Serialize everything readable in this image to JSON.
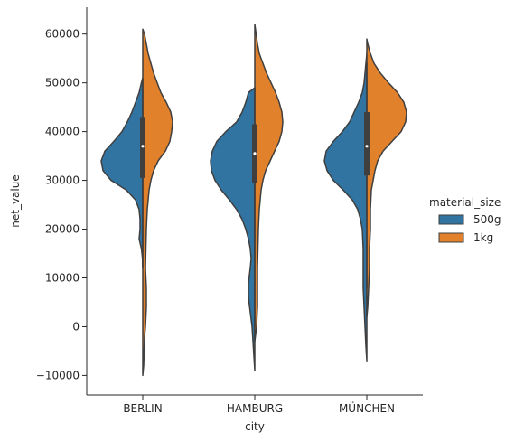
{
  "chart_data": {
    "type": "violin",
    "split": true,
    "xlabel": "city",
    "ylabel": "net_value",
    "ylim": [
      -14000,
      65500
    ],
    "yticks": [
      -10000,
      0,
      10000,
      20000,
      30000,
      40000,
      50000,
      60000
    ],
    "categories": [
      "BERLIN",
      "HAMBURG",
      "MÜNCHEN"
    ],
    "legend": {
      "title": "material_size",
      "position": "right"
    },
    "series": [
      {
        "name": "500g",
        "color": "#3274a1",
        "side": "left"
      },
      {
        "name": "1kg",
        "color": "#e1812c",
        "side": "right"
      }
    ],
    "violins": [
      {
        "category": "BERLIN",
        "box": {
          "q1": 30500,
          "median": 37000,
          "q3": 43000,
          "whisker_low": 12000,
          "whisker_high": 51000
        },
        "left": [
          [
            12000,
            0
          ],
          [
            14000,
            0.3
          ],
          [
            16000,
            1.5
          ],
          [
            18000,
            4
          ],
          [
            20000,
            3
          ],
          [
            22000,
            3
          ],
          [
            24000,
            4
          ],
          [
            26000,
            8
          ],
          [
            28000,
            18
          ],
          [
            30000,
            35
          ],
          [
            32000,
            44
          ],
          [
            34000,
            46
          ],
          [
            36000,
            42
          ],
          [
            38000,
            32
          ],
          [
            40000,
            23
          ],
          [
            42000,
            17
          ],
          [
            44000,
            12
          ],
          [
            46000,
            8
          ],
          [
            48000,
            4
          ],
          [
            50000,
            1.5
          ],
          [
            51000,
            0
          ]
        ],
        "right": [
          [
            -10000,
            0
          ],
          [
            -8000,
            1
          ],
          [
            -5000,
            1.5
          ],
          [
            -2000,
            2
          ],
          [
            0,
            3
          ],
          [
            4000,
            4
          ],
          [
            8000,
            4
          ],
          [
            12000,
            3
          ],
          [
            16000,
            3.5
          ],
          [
            20000,
            4
          ],
          [
            24000,
            5
          ],
          [
            28000,
            7
          ],
          [
            30000,
            9
          ],
          [
            32000,
            12
          ],
          [
            34000,
            17
          ],
          [
            36000,
            25
          ],
          [
            38000,
            30
          ],
          [
            40000,
            32
          ],
          [
            42000,
            33
          ],
          [
            44000,
            31
          ],
          [
            46000,
            26
          ],
          [
            48000,
            20
          ],
          [
            50000,
            16
          ],
          [
            52000,
            12
          ],
          [
            54000,
            9
          ],
          [
            56000,
            6
          ],
          [
            58000,
            4
          ],
          [
            60000,
            2
          ],
          [
            61000,
            0
          ]
        ]
      },
      {
        "category": "HAMBURG",
        "box": {
          "q1": 29500,
          "median": 35500,
          "q3": 41500,
          "whisker_low": 0,
          "whisker_high": 49000
        },
        "left": [
          [
            -9000,
            0
          ],
          [
            -6000,
            1
          ],
          [
            -3000,
            2
          ],
          [
            0,
            3
          ],
          [
            3000,
            5
          ],
          [
            6000,
            7
          ],
          [
            9000,
            7
          ],
          [
            12000,
            5
          ],
          [
            14000,
            4
          ],
          [
            16000,
            5
          ],
          [
            18000,
            7
          ],
          [
            20000,
            10
          ],
          [
            22000,
            14
          ],
          [
            24000,
            20
          ],
          [
            26000,
            28
          ],
          [
            28000,
            37
          ],
          [
            30000,
            44
          ],
          [
            32000,
            48
          ],
          [
            34000,
            49
          ],
          [
            36000,
            47
          ],
          [
            38000,
            42
          ],
          [
            40000,
            32
          ],
          [
            42000,
            20
          ],
          [
            44000,
            14
          ],
          [
            46000,
            10
          ],
          [
            48000,
            7
          ],
          [
            49000,
            0
          ]
        ],
        "right": [
          [
            -3000,
            0
          ],
          [
            0,
            2
          ],
          [
            4000,
            3
          ],
          [
            8000,
            3
          ],
          [
            12000,
            3
          ],
          [
            16000,
            3.5
          ],
          [
            20000,
            4
          ],
          [
            24000,
            5
          ],
          [
            28000,
            7
          ],
          [
            30000,
            9
          ],
          [
            32000,
            12
          ],
          [
            34000,
            17
          ],
          [
            36000,
            22
          ],
          [
            38000,
            27
          ],
          [
            40000,
            30
          ],
          [
            42000,
            31
          ],
          [
            44000,
            30
          ],
          [
            46000,
            27
          ],
          [
            48000,
            23
          ],
          [
            50000,
            18
          ],
          [
            52000,
            13
          ],
          [
            54000,
            9
          ],
          [
            56000,
            5
          ],
          [
            58000,
            3
          ],
          [
            60000,
            1.5
          ],
          [
            62000,
            0
          ]
        ]
      },
      {
        "category": "MÜNCHEN",
        "box": {
          "q1": 31000,
          "median": 37000,
          "q3": 44000,
          "whisker_low": 8000,
          "whisker_high": 54000
        },
        "left": [
          [
            -7000,
            0
          ],
          [
            -4000,
            1
          ],
          [
            0,
            2
          ],
          [
            4000,
            3
          ],
          [
            8000,
            4
          ],
          [
            12000,
            4
          ],
          [
            16000,
            4
          ],
          [
            20000,
            5
          ],
          [
            22000,
            7
          ],
          [
            24000,
            10
          ],
          [
            26000,
            16
          ],
          [
            28000,
            26
          ],
          [
            30000,
            37
          ],
          [
            32000,
            44
          ],
          [
            34000,
            47
          ],
          [
            36000,
            45
          ],
          [
            38000,
            37
          ],
          [
            40000,
            27
          ],
          [
            42000,
            19
          ],
          [
            44000,
            14
          ],
          [
            46000,
            9
          ],
          [
            48000,
            5
          ],
          [
            50000,
            3
          ],
          [
            52000,
            2
          ],
          [
            54000,
            1
          ],
          [
            56000,
            0
          ]
        ],
        "right": [
          [
            2000,
            0
          ],
          [
            4000,
            1
          ],
          [
            8000,
            2
          ],
          [
            12000,
            3
          ],
          [
            16000,
            3
          ],
          [
            20000,
            4
          ],
          [
            24000,
            4
          ],
          [
            28000,
            5
          ],
          [
            30000,
            7
          ],
          [
            32000,
            9
          ],
          [
            34000,
            12
          ],
          [
            36000,
            18
          ],
          [
            38000,
            28
          ],
          [
            40000,
            38
          ],
          [
            42000,
            43
          ],
          [
            44000,
            44
          ],
          [
            46000,
            41
          ],
          [
            48000,
            34
          ],
          [
            50000,
            24
          ],
          [
            52000,
            15
          ],
          [
            54000,
            8
          ],
          [
            56000,
            4
          ],
          [
            58000,
            1
          ],
          [
            59000,
            0
          ]
        ]
      }
    ]
  }
}
